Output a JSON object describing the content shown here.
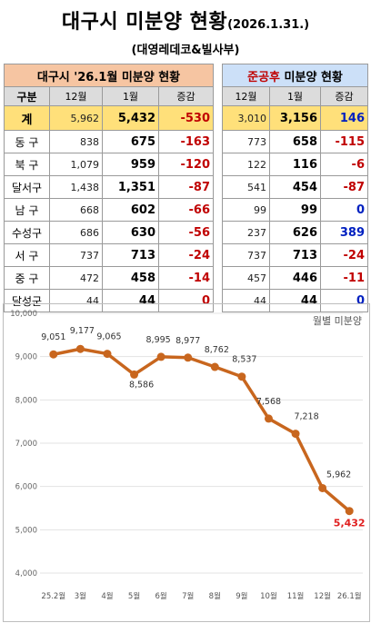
{
  "header": {
    "title": "대구시 미분양 현황",
    "date": "(2026.1.31.)",
    "subtitle": "(대영레데코&빌사부)"
  },
  "left_table": {
    "title": "대구시 '26.1월 미분양 현황",
    "col_headers": [
      "구분",
      "12월",
      "1월",
      "증감"
    ],
    "rows": [
      {
        "name": "계",
        "dec": "5,962",
        "jan": "5,432",
        "chg": "-530"
      },
      {
        "name": "동 구",
        "dec": "838",
        "jan": "675",
        "chg": "-163"
      },
      {
        "name": "북 구",
        "dec": "1,079",
        "jan": "959",
        "chg": "-120"
      },
      {
        "name": "달서구",
        "dec": "1,438",
        "jan": "1,351",
        "chg": "-87"
      },
      {
        "name": "남 구",
        "dec": "668",
        "jan": "602",
        "chg": "-66"
      },
      {
        "name": "수성구",
        "dec": "686",
        "jan": "630",
        "chg": "-56"
      },
      {
        "name": "서 구",
        "dec": "737",
        "jan": "713",
        "chg": "-24"
      },
      {
        "name": "중 구",
        "dec": "472",
        "jan": "458",
        "chg": "-14"
      },
      {
        "name": "달성군",
        "dec": "44",
        "jan": "44",
        "chg": "0"
      }
    ]
  },
  "right_table": {
    "title_accent": "준공후",
    "title_rest": " 미분양 현황",
    "col_headers": [
      "12월",
      "1월",
      "증감"
    ],
    "rows": [
      {
        "dec": "3,010",
        "jan": "3,156",
        "chg": "146"
      },
      {
        "dec": "773",
        "jan": "658",
        "chg": "-115"
      },
      {
        "dec": "122",
        "jan": "116",
        "chg": "-6"
      },
      {
        "dec": "541",
        "jan": "454",
        "chg": "-87"
      },
      {
        "dec": "99",
        "jan": "99",
        "chg": "0"
      },
      {
        "dec": "237",
        "jan": "626",
        "chg": "389"
      },
      {
        "dec": "737",
        "jan": "713",
        "chg": "-24"
      },
      {
        "dec": "457",
        "jan": "446",
        "chg": "-11"
      },
      {
        "dec": "44",
        "jan": "44",
        "chg": "0"
      }
    ]
  },
  "colors": {
    "line": "#c8661e",
    "last_label": "#e02020",
    "left_header_bg": "#f6c5a2",
    "right_header_bg": "#cce0f8",
    "total_row_bg": "#ffe07a",
    "negative": "#c00000",
    "positive": "#0020c0"
  },
  "chart_data": {
    "type": "line",
    "title": "",
    "legend": "월별 미분양",
    "x": [
      "25.2월",
      "3월",
      "4월",
      "5월",
      "6월",
      "7월",
      "8월",
      "9월",
      "10월",
      "11월",
      "12월",
      "26.1월"
    ],
    "values": [
      9051,
      9177,
      9065,
      8586,
      8995,
      8977,
      8762,
      8537,
      7568,
      7218,
      5962,
      5432
    ],
    "value_labels": [
      "9,051",
      "9,177",
      "9,065",
      "8,586",
      "8,995",
      "8,977",
      "8,762",
      "8,537",
      "7,568",
      "7,218",
      "5,962",
      "5,432"
    ],
    "ylim": [
      4000,
      10000
    ],
    "yticks": [
      4000,
      5000,
      6000,
      7000,
      8000,
      9000,
      10000
    ],
    "ytick_labels": [
      "4,000",
      "5,000",
      "6,000",
      "7,000",
      "8,000",
      "9,000",
      "10,000"
    ],
    "grid": true,
    "legend_position": "top-right"
  }
}
